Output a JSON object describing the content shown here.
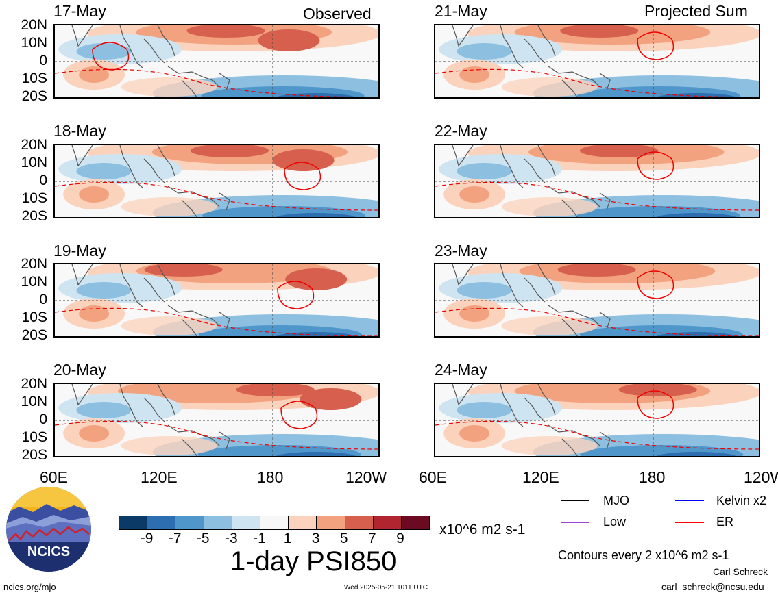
{
  "chart_data": {
    "type": "heatmap",
    "title": "1-day PSI850",
    "column_titles": [
      "Observed",
      "Projected Sum"
    ],
    "observed_dates": [
      "17-May",
      "18-May",
      "19-May",
      "20-May"
    ],
    "projected_dates": [
      "21-May",
      "22-May",
      "23-May",
      "24-May"
    ],
    "y_ticks": [
      "20N",
      "10N",
      "0",
      "10S",
      "20S"
    ],
    "x_ticks": [
      "60E",
      "120E",
      "180",
      "120W"
    ],
    "colorbar": {
      "ticks": [
        "-9",
        "-7",
        "-5",
        "-3",
        "-1",
        "1",
        "3",
        "5",
        "7",
        "9"
      ],
      "colors": [
        "#0b3a67",
        "#2c6eb0",
        "#4f96cb",
        "#8cbfe0",
        "#cfe4f1",
        "#f7f7f7",
        "#fbd3bd",
        "#f2a27f",
        "#d65f4d",
        "#b02530",
        "#6c0a22"
      ],
      "units": "x10^6 m2 s-1"
    },
    "legend": [
      {
        "name": "MJO",
        "color": "#000000"
      },
      {
        "name": "Kelvin x2",
        "color": "#0000ff"
      },
      {
        "name": "Low",
        "color": "#a040e0"
      },
      {
        "name": "ER",
        "color": "#ff0000"
      }
    ],
    "contour_note": "Contours every 2 x10^6 m2 s-1"
  },
  "footer": {
    "logo_text": "NCICS",
    "url": "ncics.org/mjo",
    "timestamp": "Wed 2025-05-21 1011 UTC",
    "author": "Carl Schreck",
    "email": "carl_schreck@ncsu.edu"
  }
}
